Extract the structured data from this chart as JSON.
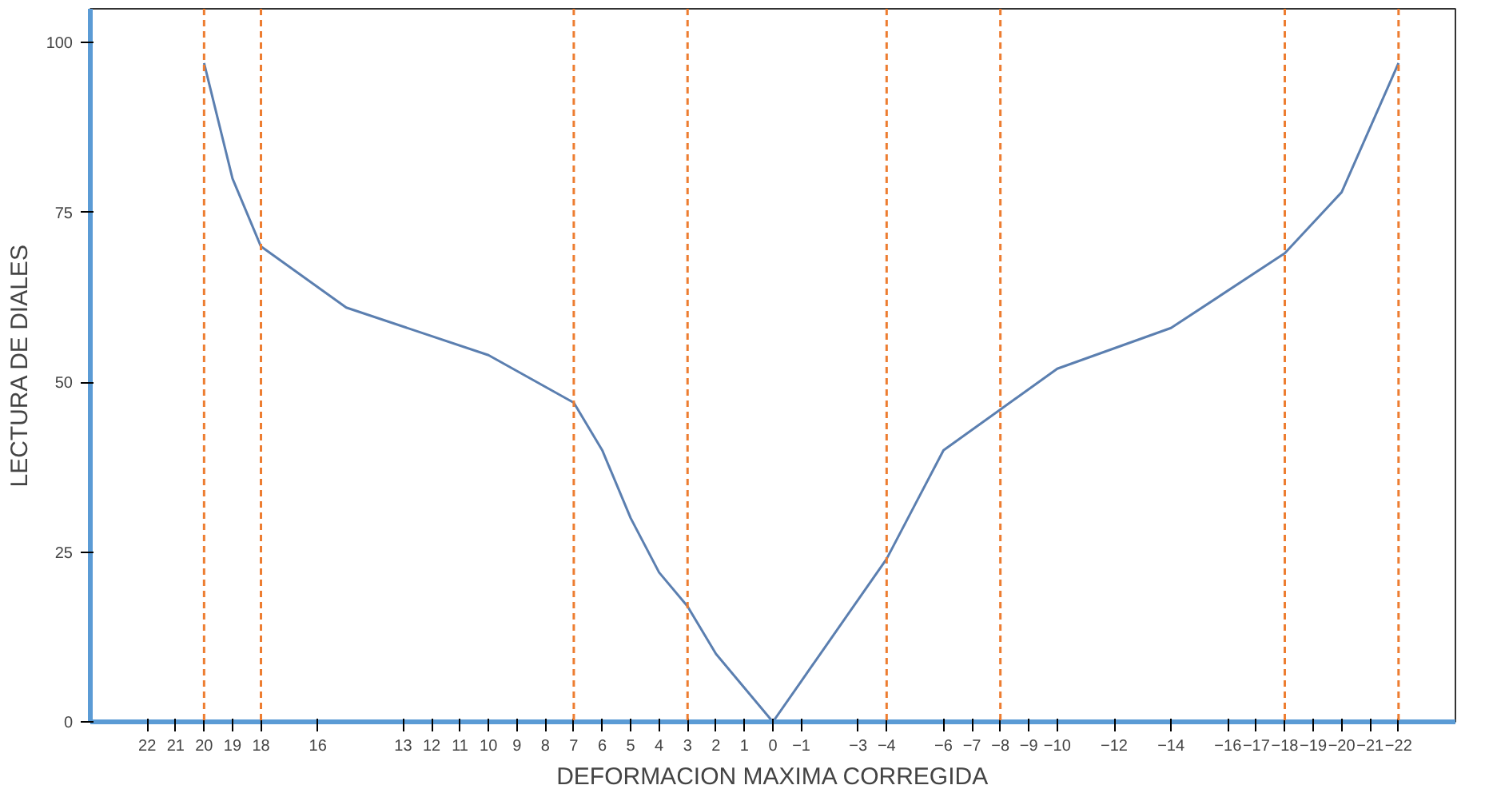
{
  "chart_data": {
    "type": "line",
    "xlabel": "DEFORMACION MAXIMA CORREGIDA",
    "ylabel": "LECTURA DE DIALES",
    "x": [
      20,
      19,
      18,
      15,
      10,
      7,
      6,
      5,
      4,
      3,
      2,
      1,
      0,
      -1,
      -2,
      -3,
      -4,
      -5,
      -6,
      -8,
      -10,
      -14,
      -18,
      -20,
      -22
    ],
    "series": [
      {
        "color": "#5b7fb0",
        "values": [
          97,
          80,
          70,
          61,
          54,
          47,
          40,
          30,
          22,
          17,
          10,
          5,
          0,
          6,
          12,
          18,
          24,
          32,
          40,
          46,
          52,
          58,
          69,
          78,
          97
        ]
      }
    ],
    "xlim": [
      24,
      -24
    ],
    "xticks": [
      22,
      21,
      20,
      19,
      18,
      16,
      13,
      12,
      11,
      10,
      9,
      8,
      7,
      6,
      5,
      4,
      3,
      2,
      1,
      0,
      -1,
      -3,
      -4,
      -6,
      -7,
      -8,
      -9,
      -10,
      -12,
      -14,
      -16,
      -17,
      -18,
      -19,
      -20,
      -21,
      -22
    ],
    "ylim": [
      0,
      105
    ],
    "yticks": [
      0,
      25,
      50,
      75,
      100
    ],
    "grid": false,
    "marker": "none",
    "line_style": "solid",
    "ref_lines": [
      {
        "axis": "x",
        "value": 20,
        "color": "#ed7d31",
        "line_style": "dashed"
      },
      {
        "axis": "x",
        "value": 18,
        "color": "#ed7d31",
        "line_style": "dashed"
      },
      {
        "axis": "x",
        "value": 7,
        "color": "#ed7d31",
        "line_style": "dashed"
      },
      {
        "axis": "x",
        "value": 3,
        "color": "#ed7d31",
        "line_style": "dashed"
      },
      {
        "axis": "x",
        "value": -4,
        "color": "#ed7d31",
        "line_style": "dashed"
      },
      {
        "axis": "x",
        "value": -8,
        "color": "#ed7d31",
        "line_style": "dashed"
      },
      {
        "axis": "x",
        "value": -18,
        "color": "#ed7d31",
        "line_style": "dashed"
      },
      {
        "axis": "x",
        "value": -22,
        "color": "#ed7d31",
        "line_style": "dashed"
      }
    ]
  }
}
